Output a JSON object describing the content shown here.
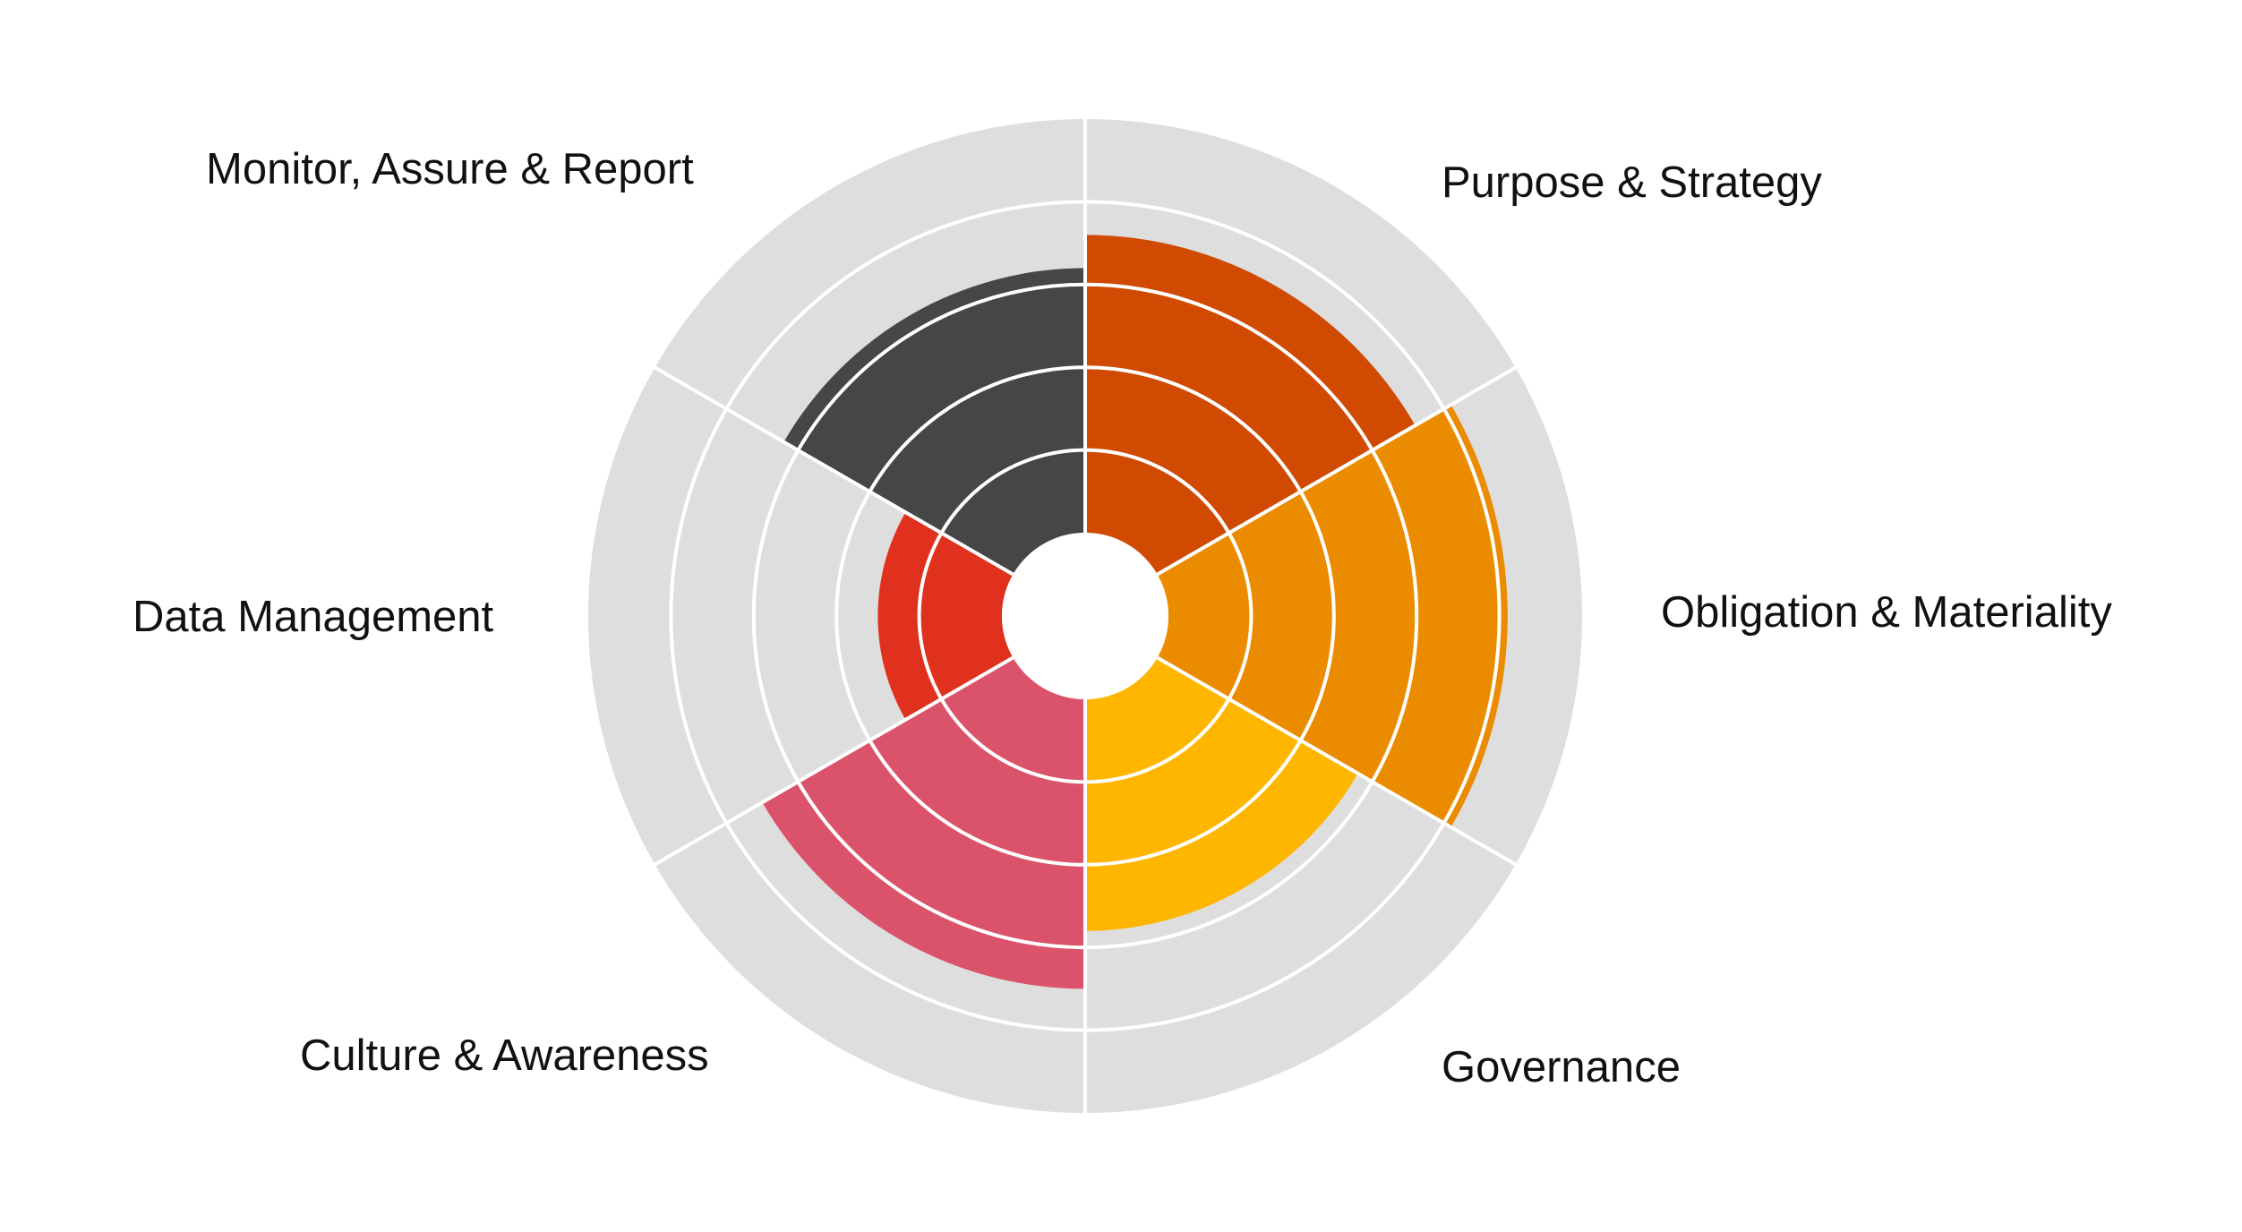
{
  "chart_data": {
    "type": "polar-area",
    "title": "",
    "scale": {
      "min": 0,
      "max": 5,
      "rings": [
        1,
        2,
        3,
        4,
        5
      ]
    },
    "categories": [
      "Purpose & Strategy",
      "Obligation & Materiality",
      "Governance",
      "Culture & Awareness",
      "Data Management",
      "Monitor, Assure & Report"
    ],
    "values": [
      3.6,
      4.1,
      2.8,
      3.5,
      1.5,
      3.2
    ],
    "colors": [
      "#d04a02",
      "#eb8c00",
      "#ffb600",
      "#db536a",
      "#e0301e",
      "#464646"
    ],
    "background_color": "#dedede",
    "grid": true
  }
}
